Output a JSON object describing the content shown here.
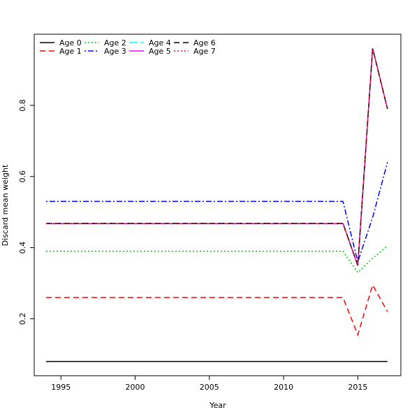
{
  "chart_data": {
    "type": "line",
    "title": "",
    "xlabel": "Year",
    "ylabel": "Discard mean weight",
    "xlim": [
      1993.2,
      2017.9
    ],
    "ylim": [
      0.04,
      1.0
    ],
    "x_ticks": [
      1995,
      2000,
      2005,
      2010,
      2015
    ],
    "y_ticks": [
      0.2,
      0.4,
      0.6,
      0.8
    ],
    "x_tick_labels": [
      "1995",
      "2000",
      "2005",
      "2010",
      "2015"
    ],
    "y_tick_labels": [
      "0.2",
      "0.4",
      "0.6",
      "0.8"
    ],
    "x": [
      1994,
      1995,
      1996,
      1997,
      1998,
      1999,
      2000,
      2001,
      2002,
      2003,
      2004,
      2005,
      2006,
      2007,
      2008,
      2009,
      2010,
      2011,
      2012,
      2013,
      2014,
      2015,
      2016,
      2017
    ],
    "legend_position": "top-left",
    "legend_columns": 4,
    "grid": false,
    "series": [
      {
        "name": "Age 0",
        "color": "#000000",
        "dash": "solid",
        "values": [
          0.08,
          0.08,
          0.08,
          0.08,
          0.08,
          0.08,
          0.08,
          0.08,
          0.08,
          0.08,
          0.08,
          0.08,
          0.08,
          0.08,
          0.08,
          0.08,
          0.08,
          0.08,
          0.08,
          0.08,
          0.08,
          0.08,
          0.08,
          0.08
        ]
      },
      {
        "name": "Age 1",
        "color": "#ff0000",
        "dash": "dashed",
        "values": [
          0.26,
          0.26,
          0.26,
          0.26,
          0.26,
          0.26,
          0.26,
          0.26,
          0.26,
          0.26,
          0.26,
          0.26,
          0.26,
          0.26,
          0.26,
          0.26,
          0.26,
          0.26,
          0.26,
          0.26,
          0.26,
          0.155,
          0.295,
          0.22
        ]
      },
      {
        "name": "Age 2",
        "color": "#00cd00",
        "dash": "dotted",
        "values": [
          0.39,
          0.39,
          0.39,
          0.39,
          0.39,
          0.39,
          0.39,
          0.39,
          0.39,
          0.39,
          0.39,
          0.39,
          0.39,
          0.39,
          0.39,
          0.39,
          0.39,
          0.39,
          0.39,
          0.39,
          0.39,
          0.33,
          0.37,
          0.405
        ]
      },
      {
        "name": "Age 3",
        "color": "#0000ff",
        "dash": "dotdash",
        "values": [
          0.53,
          0.53,
          0.53,
          0.53,
          0.53,
          0.53,
          0.53,
          0.53,
          0.53,
          0.53,
          0.53,
          0.53,
          0.53,
          0.53,
          0.53,
          0.53,
          0.53,
          0.53,
          0.53,
          0.53,
          0.53,
          0.36,
          0.485,
          0.64
        ]
      },
      {
        "name": "Age 4",
        "color": "#00ffff",
        "dash": "longdash",
        "values": [
          0.468,
          0.468,
          0.468,
          0.468,
          0.468,
          0.468,
          0.468,
          0.468,
          0.468,
          0.468,
          0.468,
          0.468,
          0.468,
          0.468,
          0.468,
          0.468,
          0.468,
          0.468,
          0.468,
          0.468,
          0.468,
          0.35,
          0.96,
          0.79
        ]
      },
      {
        "name": "Age 5",
        "color": "#ff00ff",
        "dash": "solid",
        "values": [
          0.468,
          0.468,
          0.468,
          0.468,
          0.468,
          0.468,
          0.468,
          0.468,
          0.468,
          0.468,
          0.468,
          0.468,
          0.468,
          0.468,
          0.468,
          0.468,
          0.468,
          0.468,
          0.468,
          0.468,
          0.468,
          0.35,
          0.96,
          0.79
        ]
      },
      {
        "name": "Age 6",
        "color": "#000000",
        "dash": "dashed",
        "values": [
          0.468,
          0.468,
          0.468,
          0.468,
          0.468,
          0.468,
          0.468,
          0.468,
          0.468,
          0.468,
          0.468,
          0.468,
          0.468,
          0.468,
          0.468,
          0.468,
          0.468,
          0.468,
          0.468,
          0.468,
          0.468,
          0.35,
          0.96,
          0.79
        ]
      },
      {
        "name": "Age 7",
        "color": "#ff0000",
        "dash": "dotted",
        "values": [
          0.468,
          0.468,
          0.468,
          0.468,
          0.468,
          0.468,
          0.468,
          0.468,
          0.468,
          0.468,
          0.468,
          0.468,
          0.468,
          0.468,
          0.468,
          0.468,
          0.468,
          0.468,
          0.468,
          0.468,
          0.468,
          0.35,
          0.96,
          0.79
        ]
      }
    ]
  }
}
